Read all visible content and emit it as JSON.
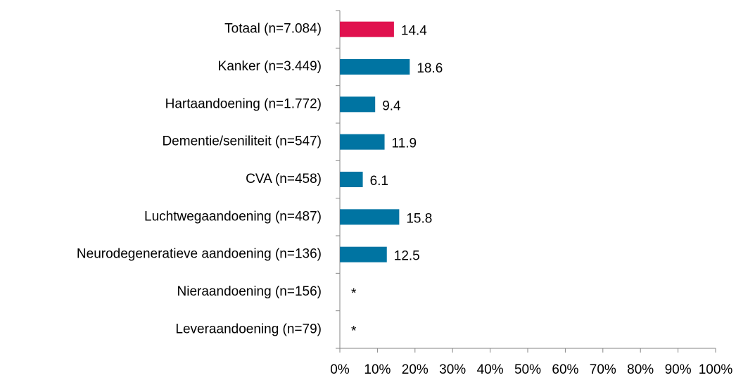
{
  "chart_data": {
    "type": "barh",
    "categories": [
      "Totaal (n=7.084)",
      "Kanker (n=3.449)",
      "Hartaandoening (n=1.772)",
      "Dementie/seniliteit (n=547)",
      "CVA (n=458)",
      "Luchtwegaandoening (n=487)",
      "Neurodegeneratieve aandoening (n=136)",
      "Nieraandoening (n=156)",
      "Leveraandoening (n=79)"
    ],
    "values": [
      14.4,
      18.6,
      9.4,
      11.9,
      6.1,
      15.8,
      12.5,
      null,
      null
    ],
    "value_labels": [
      "14.4",
      "18.6",
      "9.4",
      "11.9",
      "6.1",
      "15.8",
      "12.5",
      "*",
      "*"
    ],
    "colors": [
      "#e0114e",
      "#0074a2",
      "#0074a2",
      "#0074a2",
      "#0074a2",
      "#0074a2",
      "#0074a2",
      "#0074a2",
      "#0074a2"
    ],
    "xlim": [
      0,
      100
    ],
    "xticks": [
      {
        "value": 0,
        "label": "0%"
      },
      {
        "value": 10,
        "label": "10%"
      },
      {
        "value": 20,
        "label": "20%"
      },
      {
        "value": 30,
        "label": "30%"
      },
      {
        "value": 40,
        "label": "40%"
      },
      {
        "value": 50,
        "label": "50%"
      },
      {
        "value": 60,
        "label": "60%"
      },
      {
        "value": 70,
        "label": "70%"
      },
      {
        "value": 80,
        "label": "80%"
      },
      {
        "value": 90,
        "label": "90%"
      },
      {
        "value": 100,
        "label": "100%"
      }
    ],
    "grid": false
  }
}
